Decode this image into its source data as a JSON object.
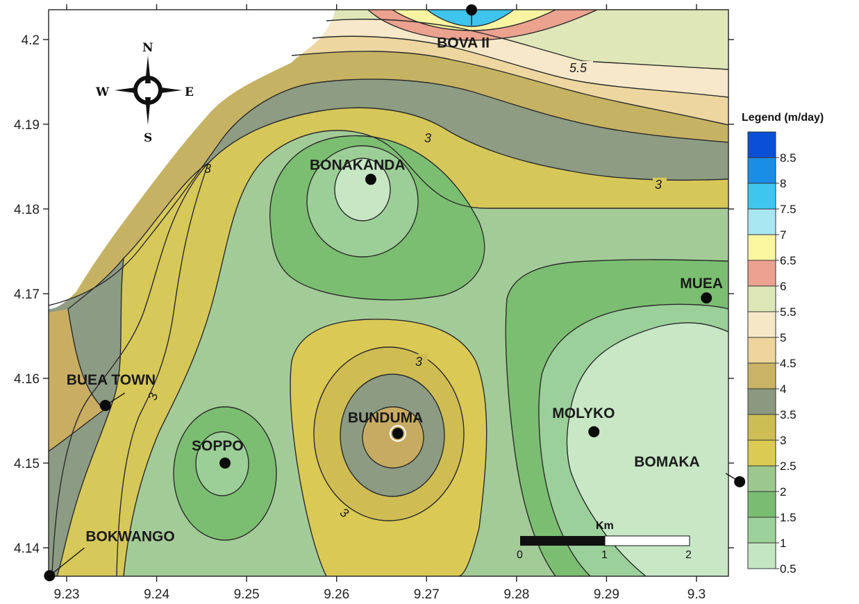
{
  "map": {
    "x_axis_ticks": [
      "9.23",
      "9.24",
      "9.25",
      "9.26",
      "9.27",
      "9.28",
      "9.29",
      "9.3"
    ],
    "y_axis_ticks": [
      "4.2",
      "4.19",
      "4.18",
      "4.17",
      "4.16",
      "4.15",
      "4.14"
    ],
    "places": [
      {
        "name": "BOVA II",
        "lon": 9.275,
        "lat": 4.2035
      },
      {
        "name": "BONAKANDA",
        "lon": 9.2638,
        "lat": 4.1835
      },
      {
        "name": "MUEA",
        "lon": 9.3011,
        "lat": 4.1695
      },
      {
        "name": "BUEA TOWN",
        "lon": 9.2343,
        "lat": 4.1568
      },
      {
        "name": "BUNDUMA",
        "lon": 9.2668,
        "lat": 4.1535
      },
      {
        "name": "MOLYKO",
        "lon": 9.2886,
        "lat": 4.1537
      },
      {
        "name": "SOPPO",
        "lon": 9.2476,
        "lat": 4.15
      },
      {
        "name": "BOMAKA",
        "lon": 9.3048,
        "lat": 4.1478
      },
      {
        "name": "BOKWANGO",
        "lon": 9.2281,
        "lat": 4.1367
      }
    ],
    "contour_labels": [
      "5.5",
      "3",
      "3",
      "3",
      "3",
      "3",
      "3"
    ]
  },
  "compass": {
    "north": "N",
    "south": "S",
    "east": "E",
    "west": "W"
  },
  "scale_bar": {
    "unit": "Km",
    "ticks": [
      "0",
      "1",
      "2"
    ]
  },
  "legend": {
    "title": "Legend (m/day)",
    "ticks": [
      "8.5",
      "8",
      "7.5",
      "7",
      "6.5",
      "6",
      "5.5",
      "5",
      "4.5",
      "4",
      "3.5",
      "3",
      "2.5",
      "2",
      "1.5",
      "1",
      "0.5"
    ],
    "colors": [
      "#0a4fd8",
      "#1a8ee6",
      "#3fc6ee",
      "#a8e6f2",
      "#fbf6a0",
      "#eda191",
      "#dde6b6",
      "#f6e8c6",
      "#ecd49a",
      "#c9b466",
      "#8c9980",
      "#cdbd55",
      "#dccb52",
      "#9cc78f",
      "#7abd72",
      "#9bd09a",
      "#c5e6c3"
    ]
  }
}
